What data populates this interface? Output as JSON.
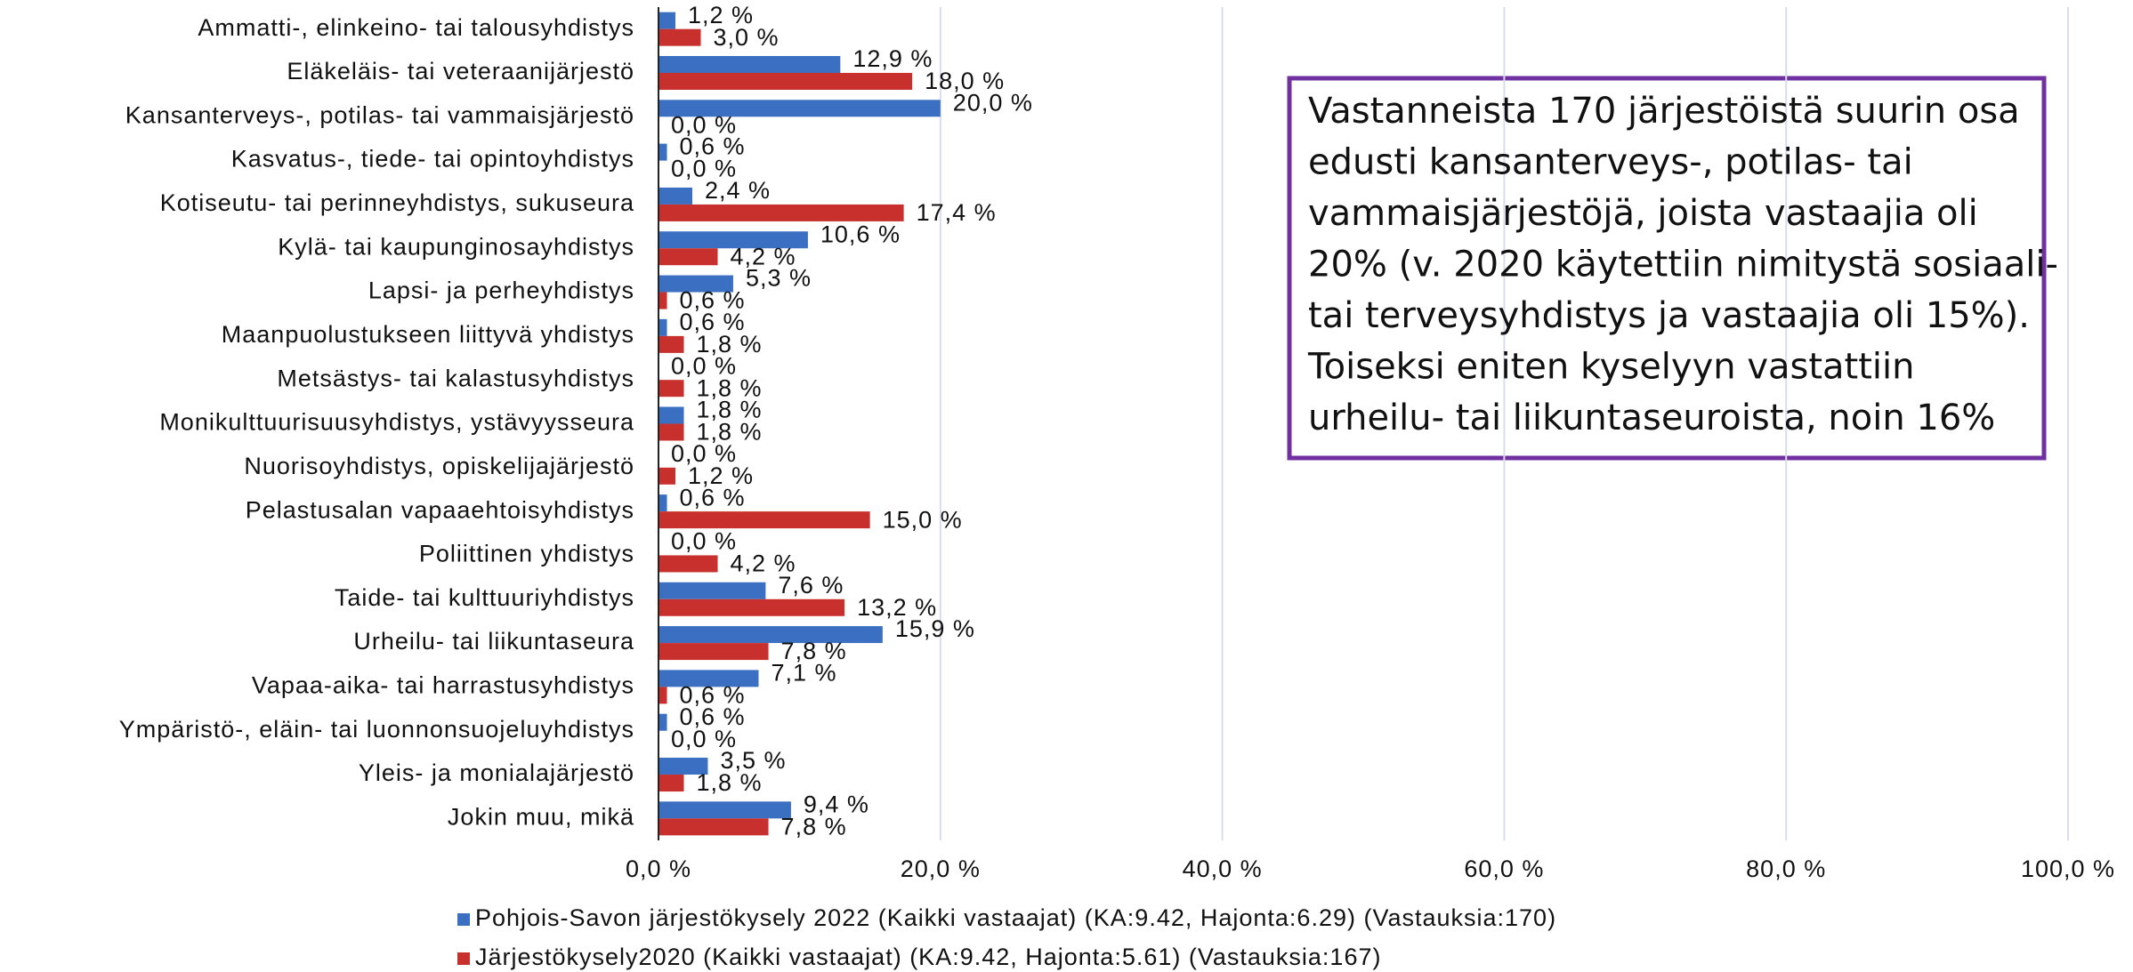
{
  "chart_data": {
    "type": "hbar",
    "categories": [
      "Ammatti-, elinkeino- tai talousyhdistys",
      "Eläkeläis- tai veteraanijärjestö",
      "Kansanterveys-, potilas- tai vammaisjärjestö",
      "Kasvatus-, tiede- tai opintoyhdistys",
      "Kotiseutu- tai perinneyhdistys, sukuseura",
      "Kylä- tai kaupunginosayhdistys",
      "Lapsi- ja perheyhdistys",
      "Maanpuolustukseen liittyvä yhdistys",
      "Metsästys- tai kalastusyhdistys",
      "Monikulttuurisuusyhdistys, ystävyysseura",
      "Nuorisoyhdistys, opiskelijajärjestö",
      "Pelastusalan vapaaehtoisyhdistys",
      "Poliittinen yhdistys",
      "Taide- tai kulttuuriyhdistys",
      "Urheilu- tai liikuntaseura",
      "Vapaa-aika- tai harrastusyhdistys",
      "Ympäristö-, eläin- tai luonnonsuojeluyhdistys",
      "Yleis- ja monialajärjestö",
      "Jokin muu, mikä"
    ],
    "series": [
      {
        "name": "Pohjois-Savon järjestökysely 2022 (Kaikki vastaajat) (KA:9.42, Hajonta:6.29) (Vastauksia:170)",
        "color": "#3b6fc2",
        "values": [
          1.2,
          12.9,
          20.0,
          0.6,
          2.4,
          10.6,
          5.3,
          0.6,
          0.0,
          1.8,
          0.0,
          0.6,
          0.0,
          7.6,
          15.9,
          7.1,
          0.6,
          3.5,
          9.4
        ],
        "value_labels": [
          "1,2 %",
          "12,9 %",
          "20,0 %",
          "0,6 %",
          "2,4 %",
          "10,6 %",
          "5,3 %",
          "0,6 %",
          "0,0 %",
          "1,8 %",
          "0,0 %",
          "0,6 %",
          "0,0 %",
          "7,6 %",
          "15,9 %",
          "7,1 %",
          "0,6 %",
          "3,5 %",
          "9,4 %"
        ]
      },
      {
        "name": "Järjestökysely2020 (Kaikki vastaajat) (KA:9.42, Hajonta:5.61) (Vastauksia:167)",
        "color": "#c8302e",
        "values": [
          3.0,
          18.0,
          0.0,
          0.0,
          17.4,
          4.2,
          0.6,
          1.8,
          1.8,
          1.8,
          1.2,
          15.0,
          4.2,
          13.2,
          7.8,
          0.6,
          0.0,
          1.8,
          7.8
        ],
        "value_labels": [
          "3,0 %",
          "18,0 %",
          "0,0 %",
          "0,0 %",
          "17,4 %",
          "4,2 %",
          "0,6 %",
          "1,8 %",
          "1,8 %",
          "1,8 %",
          "1,2 %",
          "15,0 %",
          "4,2 %",
          "13,2 %",
          "7,8 %",
          "0,6 %",
          "0,0 %",
          "1,8 %",
          "7,8 %"
        ]
      }
    ],
    "xlim": [
      0,
      100
    ],
    "xticks": [
      {
        "value": 0,
        "label": "0,0 %"
      },
      {
        "value": 20,
        "label": "20,0 %"
      },
      {
        "value": 40,
        "label": "40,0 %"
      },
      {
        "value": 60,
        "label": "60,0 %"
      },
      {
        "value": 80,
        "label": "80,0 %"
      },
      {
        "value": 100,
        "label": "100,0 %"
      }
    ],
    "grid": true,
    "legend": "bottom",
    "annotation": [
      "Vastanneista 170 järjestöistä suurin osa",
      "edusti kansanterveys-, potilas- tai",
      "vammaisjärjestöjä, joista vastaajia oli",
      "20% (v. 2020 käytettiin nimitystä sosiaali-",
      "tai terveysyhdistys ja vastaajia oli 15%).",
      "Toiseksi eniten kyselyyn vastattiin",
      "urheilu- tai liikuntaseuroista, noin 16%"
    ]
  }
}
